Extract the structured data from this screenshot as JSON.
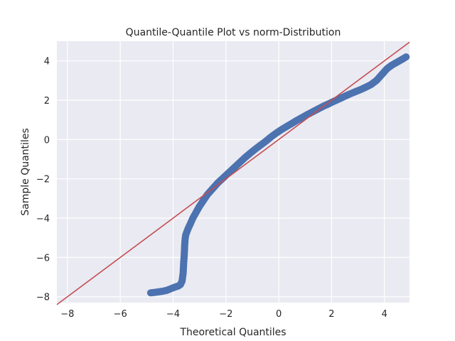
{
  "chart_data": {
    "type": "scatter",
    "title": "Quantile-Quantile Plot vs norm-Distribution",
    "xlabel": "Theoretical Quantiles",
    "ylabel": "Sample Quantiles",
    "xlim": [
      -8.4,
      4.95
    ],
    "ylim": [
      -8.3,
      5.0
    ],
    "xticks": [
      -8,
      -6,
      -4,
      -2,
      0,
      2,
      4
    ],
    "yticks": [
      -8,
      -6,
      -4,
      -2,
      0,
      2,
      4
    ],
    "xtick_labels": [
      "−8",
      "−6",
      "−4",
      "−2",
      "0",
      "2",
      "4"
    ],
    "ytick_labels": [
      "−8",
      "−6",
      "−4",
      "−2",
      "0",
      "2",
      "4"
    ],
    "grid": true,
    "colors": {
      "background": "#eaeaf2",
      "grid": "#ffffff",
      "points": "#4c72b0",
      "reference_line": "#c44e52"
    },
    "reference_line": {
      "x": [
        -8.4,
        4.95
      ],
      "y": [
        -8.4,
        4.95
      ]
    },
    "series": [
      {
        "x": [
          -4.85,
          -4.7,
          -4.55,
          -4.4,
          -4.25,
          -4.1,
          -3.95,
          -3.8,
          -3.72,
          -3.66,
          -3.62,
          -3.6,
          -3.58,
          -3.57,
          -3.56,
          -3.55,
          -3.54,
          -3.52,
          -3.48,
          -3.42,
          -3.35,
          -3.25,
          -3.15,
          -3.0,
          -2.85,
          -2.7,
          -2.5,
          -2.3,
          -2.1,
          -1.9,
          -1.7,
          -1.5,
          -1.3,
          -1.1,
          -0.9,
          -0.7,
          -0.5,
          -0.3,
          -0.1,
          0.1,
          0.3,
          0.5,
          0.7,
          0.9,
          1.1,
          1.3,
          1.5,
          1.7,
          1.9,
          2.1,
          2.3,
          2.5,
          2.7,
          2.9,
          3.1,
          3.3,
          3.5,
          3.7,
          3.9,
          4.1,
          4.3,
          4.5,
          4.7,
          4.82
        ],
        "y": [
          -7.8,
          -7.78,
          -7.75,
          -7.72,
          -7.68,
          -7.6,
          -7.52,
          -7.45,
          -7.38,
          -7.2,
          -6.8,
          -6.3,
          -5.9,
          -5.6,
          -5.35,
          -5.15,
          -5.0,
          -4.85,
          -4.7,
          -4.5,
          -4.3,
          -4.0,
          -3.75,
          -3.4,
          -3.1,
          -2.8,
          -2.5,
          -2.2,
          -1.95,
          -1.7,
          -1.45,
          -1.2,
          -0.95,
          -0.72,
          -0.5,
          -0.3,
          -0.1,
          0.12,
          0.32,
          0.5,
          0.66,
          0.82,
          0.98,
          1.13,
          1.28,
          1.42,
          1.56,
          1.7,
          1.82,
          1.95,
          2.07,
          2.2,
          2.32,
          2.43,
          2.54,
          2.66,
          2.8,
          3.0,
          3.3,
          3.6,
          3.8,
          3.95,
          4.1,
          4.2
        ]
      }
    ]
  }
}
